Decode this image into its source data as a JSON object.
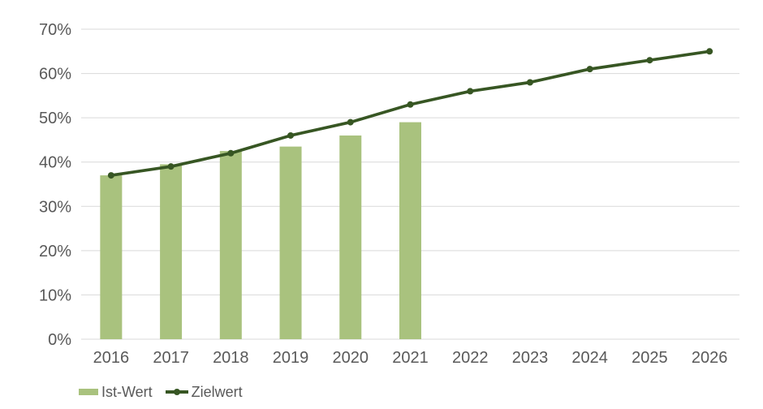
{
  "chart_data": {
    "type": "combo",
    "title": "",
    "categories": [
      "2016",
      "2017",
      "2018",
      "2019",
      "2020",
      "2021",
      "2022",
      "2023",
      "2024",
      "2025",
      "2026"
    ],
    "series": [
      {
        "name": "Ist-Wert",
        "type": "bar",
        "color": "#a9c27e",
        "values": [
          37,
          39.5,
          42.5,
          43.5,
          46,
          49,
          null,
          null,
          null,
          null,
          null
        ]
      },
      {
        "name": "Zielwert",
        "type": "line",
        "color": "#375623",
        "values": [
          37,
          39,
          42,
          46,
          49,
          53,
          56,
          58,
          61,
          63,
          65
        ]
      }
    ],
    "xlabel": "",
    "ylabel": "",
    "y_axis": {
      "min": 0,
      "max": 70,
      "step": 10,
      "format": "percent",
      "tick_labels": [
        "0%",
        "10%",
        "20%",
        "30%",
        "40%",
        "50%",
        "60%",
        "70%"
      ]
    },
    "grid": true,
    "legend_position": "bottom-left"
  },
  "colors": {
    "background": "#ffffff",
    "gridline": "#d9d9d9",
    "axis_line": "#d9d9d9",
    "axis_text": "#595959",
    "bar": "#a9c27e",
    "line": "#375623"
  }
}
